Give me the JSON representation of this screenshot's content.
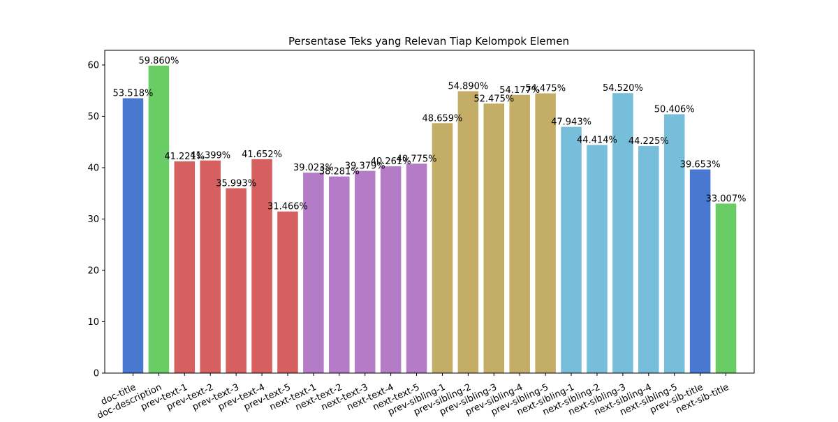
{
  "chart_data": {
    "type": "bar",
    "title": "Persentase Teks yang Relevan Tiap Kelompok Elemen",
    "xlabel": "",
    "ylabel": "",
    "ylim": [
      0,
      62.85
    ],
    "yticks": [
      0,
      10,
      20,
      30,
      40,
      50,
      60
    ],
    "grid": false,
    "categories": [
      "doc-title",
      "doc-description",
      "prev-text-1",
      "prev-text-2",
      "prev-text-3",
      "prev-text-4",
      "prev-text-5",
      "next-text-1",
      "next-text-2",
      "next-text-3",
      "next-text-4",
      "next-text-5",
      "prev-sibling-1",
      "prev-sibling-2",
      "prev-sibling-3",
      "prev-sibling-4",
      "prev-sibling-5",
      "next-sibling-1",
      "next-sibling-2",
      "next-sibling-3",
      "next-sibling-4",
      "next-sibling-5",
      "prev-sib-title",
      "next-sib-title"
    ],
    "values": [
      53.518,
      59.86,
      41.221,
      41.399,
      35.993,
      41.652,
      31.466,
      39.023,
      38.281,
      39.379,
      40.261,
      40.775,
      48.659,
      54.89,
      52.475,
      54.177,
      54.475,
      47.943,
      44.414,
      54.52,
      44.225,
      50.406,
      39.653,
      33.007
    ],
    "labels": [
      "53.518%",
      "59.860%",
      "41.221%",
      "41.399%",
      "35.993%",
      "41.652%",
      "31.466%",
      "39.023%",
      "38.281%",
      "39.379%",
      "40.261%",
      "40.775%",
      "48.659%",
      "54.890%",
      "52.475%",
      "54.177%",
      "54.475%",
      "47.943%",
      "44.414%",
      "54.520%",
      "44.225%",
      "50.406%",
      "39.653%",
      "33.007%"
    ],
    "colors": [
      "#4878d0",
      "#6acc64",
      "#d65f5f",
      "#d65f5f",
      "#d65f5f",
      "#d65f5f",
      "#d65f5f",
      "#b47cc7",
      "#b47cc7",
      "#b47cc7",
      "#b47cc7",
      "#b47cc7",
      "#c4ad66",
      "#c4ad66",
      "#c4ad66",
      "#c4ad66",
      "#c4ad66",
      "#77bedb",
      "#77bedb",
      "#77bedb",
      "#77bedb",
      "#77bedb",
      "#4878d0",
      "#6acc64"
    ],
    "xtick_rotation_deg": -25
  }
}
